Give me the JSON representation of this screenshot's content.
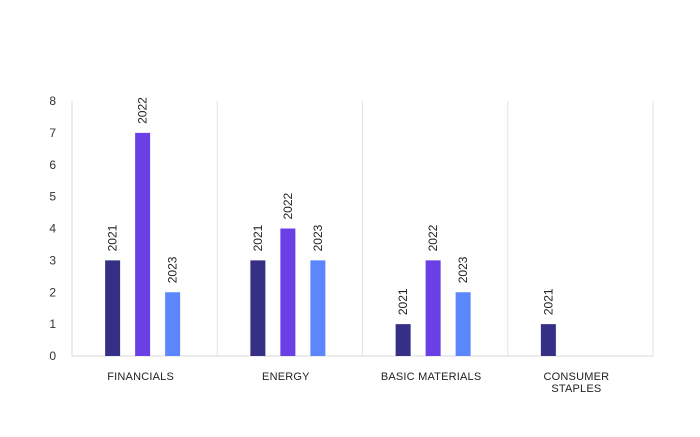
{
  "chart_data": {
    "type": "bar",
    "title": "",
    "xlabel": "",
    "ylabel": "",
    "ylim": [
      0,
      8
    ],
    "yticks": [
      "0",
      "1",
      "2",
      "3",
      "4",
      "5",
      "6",
      "7",
      "8"
    ],
    "grid": "vertical category separators",
    "categories": [
      {
        "label_lines": [
          "FINANCIALS"
        ]
      },
      {
        "label_lines": [
          "ENERGY"
        ]
      },
      {
        "label_lines": [
          "BASIC MATERIALS"
        ]
      },
      {
        "label_lines": [
          "CONSUMER",
          "STAPLES"
        ]
      }
    ],
    "series": [
      {
        "name": "2021",
        "color": "#352f86",
        "values": [
          3,
          3,
          1,
          1
        ]
      },
      {
        "name": "2022",
        "color": "#6b3fe6",
        "values": [
          7,
          4,
          3,
          null
        ]
      },
      {
        "name": "2023",
        "color": "#5b86fc",
        "values": [
          2,
          3,
          2,
          null
        ]
      }
    ]
  }
}
